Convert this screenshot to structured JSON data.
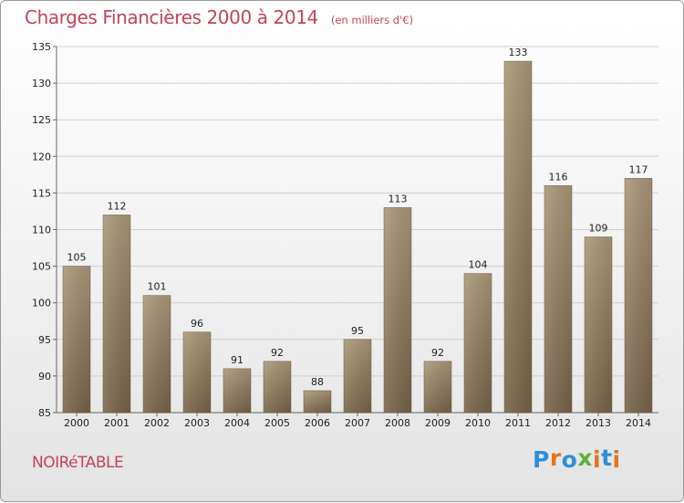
{
  "header": {
    "title": "Charges Financières 2000 à 2014",
    "subtitle": "(en milliers d'€)"
  },
  "footer": {
    "town": "NOIRéTABLE",
    "logo": "Proxiti",
    "logo_colors": [
      "#2f8fd8",
      "#e8731a",
      "#2f8fd8",
      "#5db33a",
      "#e8731a",
      "#2f8fd8",
      "#e8731a"
    ]
  },
  "colors": {
    "title": "#c0455b",
    "bar_top": "#a89677",
    "bar_bottom": "#746247",
    "axis": "#666666",
    "grid": "#cfcfcf"
  },
  "chart_data": {
    "type": "bar",
    "categories": [
      "2000",
      "2001",
      "2002",
      "2003",
      "2004",
      "2005",
      "2006",
      "2007",
      "2008",
      "2009",
      "2010",
      "2011",
      "2012",
      "2013",
      "2014"
    ],
    "values": [
      105,
      112,
      101,
      96,
      91,
      92,
      88,
      95,
      113,
      92,
      104,
      133,
      116,
      109,
      117
    ],
    "title": "Charges Financières 2000 à 2014",
    "subtitle": "(en milliers d'€)",
    "xlabel": "",
    "ylabel": "",
    "ylim": [
      85,
      135
    ],
    "yticks": [
      85,
      90,
      95,
      100,
      105,
      110,
      115,
      120,
      125,
      130,
      135
    ],
    "grid": true,
    "legend": "none"
  }
}
